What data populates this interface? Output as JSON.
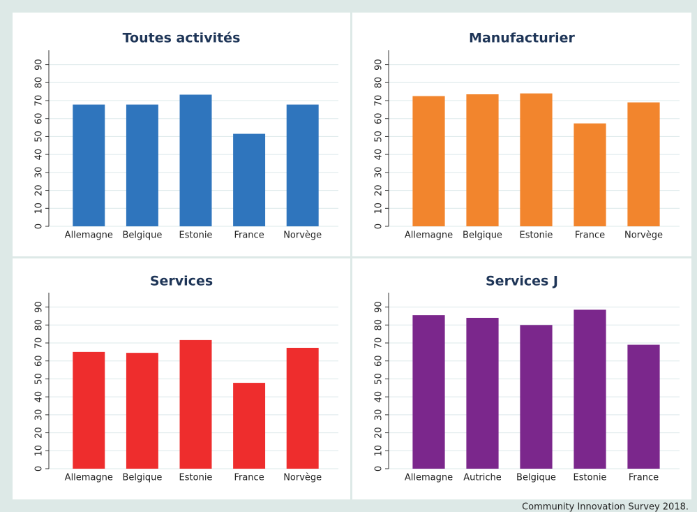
{
  "caption": "Community Innovation Survey 2018.",
  "chart_data": [
    {
      "type": "bar",
      "title": "Toutes activités",
      "categories": [
        "Allemagne",
        "Belgique",
        "Estonie",
        "France",
        "Norvège"
      ],
      "values": [
        67.8,
        67.8,
        73.3,
        51.5,
        67.8
      ],
      "color": "#2f75bd",
      "ylim": [
        0,
        98
      ],
      "yticks": [
        0,
        10,
        20,
        30,
        40,
        50,
        60,
        70,
        80,
        90
      ],
      "grid": true
    },
    {
      "type": "bar",
      "title": "Manufacturier",
      "categories": [
        "Allemagne",
        "Belgique",
        "Estonie",
        "France",
        "Norvège"
      ],
      "values": [
        72.5,
        73.5,
        74,
        57.3,
        69
      ],
      "color": "#f2852d",
      "ylim": [
        0,
        98
      ],
      "yticks": [
        0,
        10,
        20,
        30,
        40,
        50,
        60,
        70,
        80,
        90
      ],
      "grid": true
    },
    {
      "type": "bar",
      "title": "Services",
      "categories": [
        "Allemagne",
        "Belgique",
        "Estonie",
        "France",
        "Norvège"
      ],
      "values": [
        65,
        64.5,
        71.6,
        47.8,
        67.3
      ],
      "color": "#ee2d2d",
      "ylim": [
        0,
        98
      ],
      "yticks": [
        0,
        10,
        20,
        30,
        40,
        50,
        60,
        70,
        80,
        90
      ],
      "grid": true
    },
    {
      "type": "bar",
      "title": "Services J",
      "categories": [
        "Allemagne",
        "Autriche",
        "Belgique",
        "Estonie",
        "France"
      ],
      "values": [
        85.5,
        84,
        80,
        88.5,
        69
      ],
      "color": "#7b278c",
      "ylim": [
        0,
        98
      ],
      "yticks": [
        0,
        10,
        20,
        30,
        40,
        50,
        60,
        70,
        80,
        90
      ],
      "grid": true
    }
  ]
}
